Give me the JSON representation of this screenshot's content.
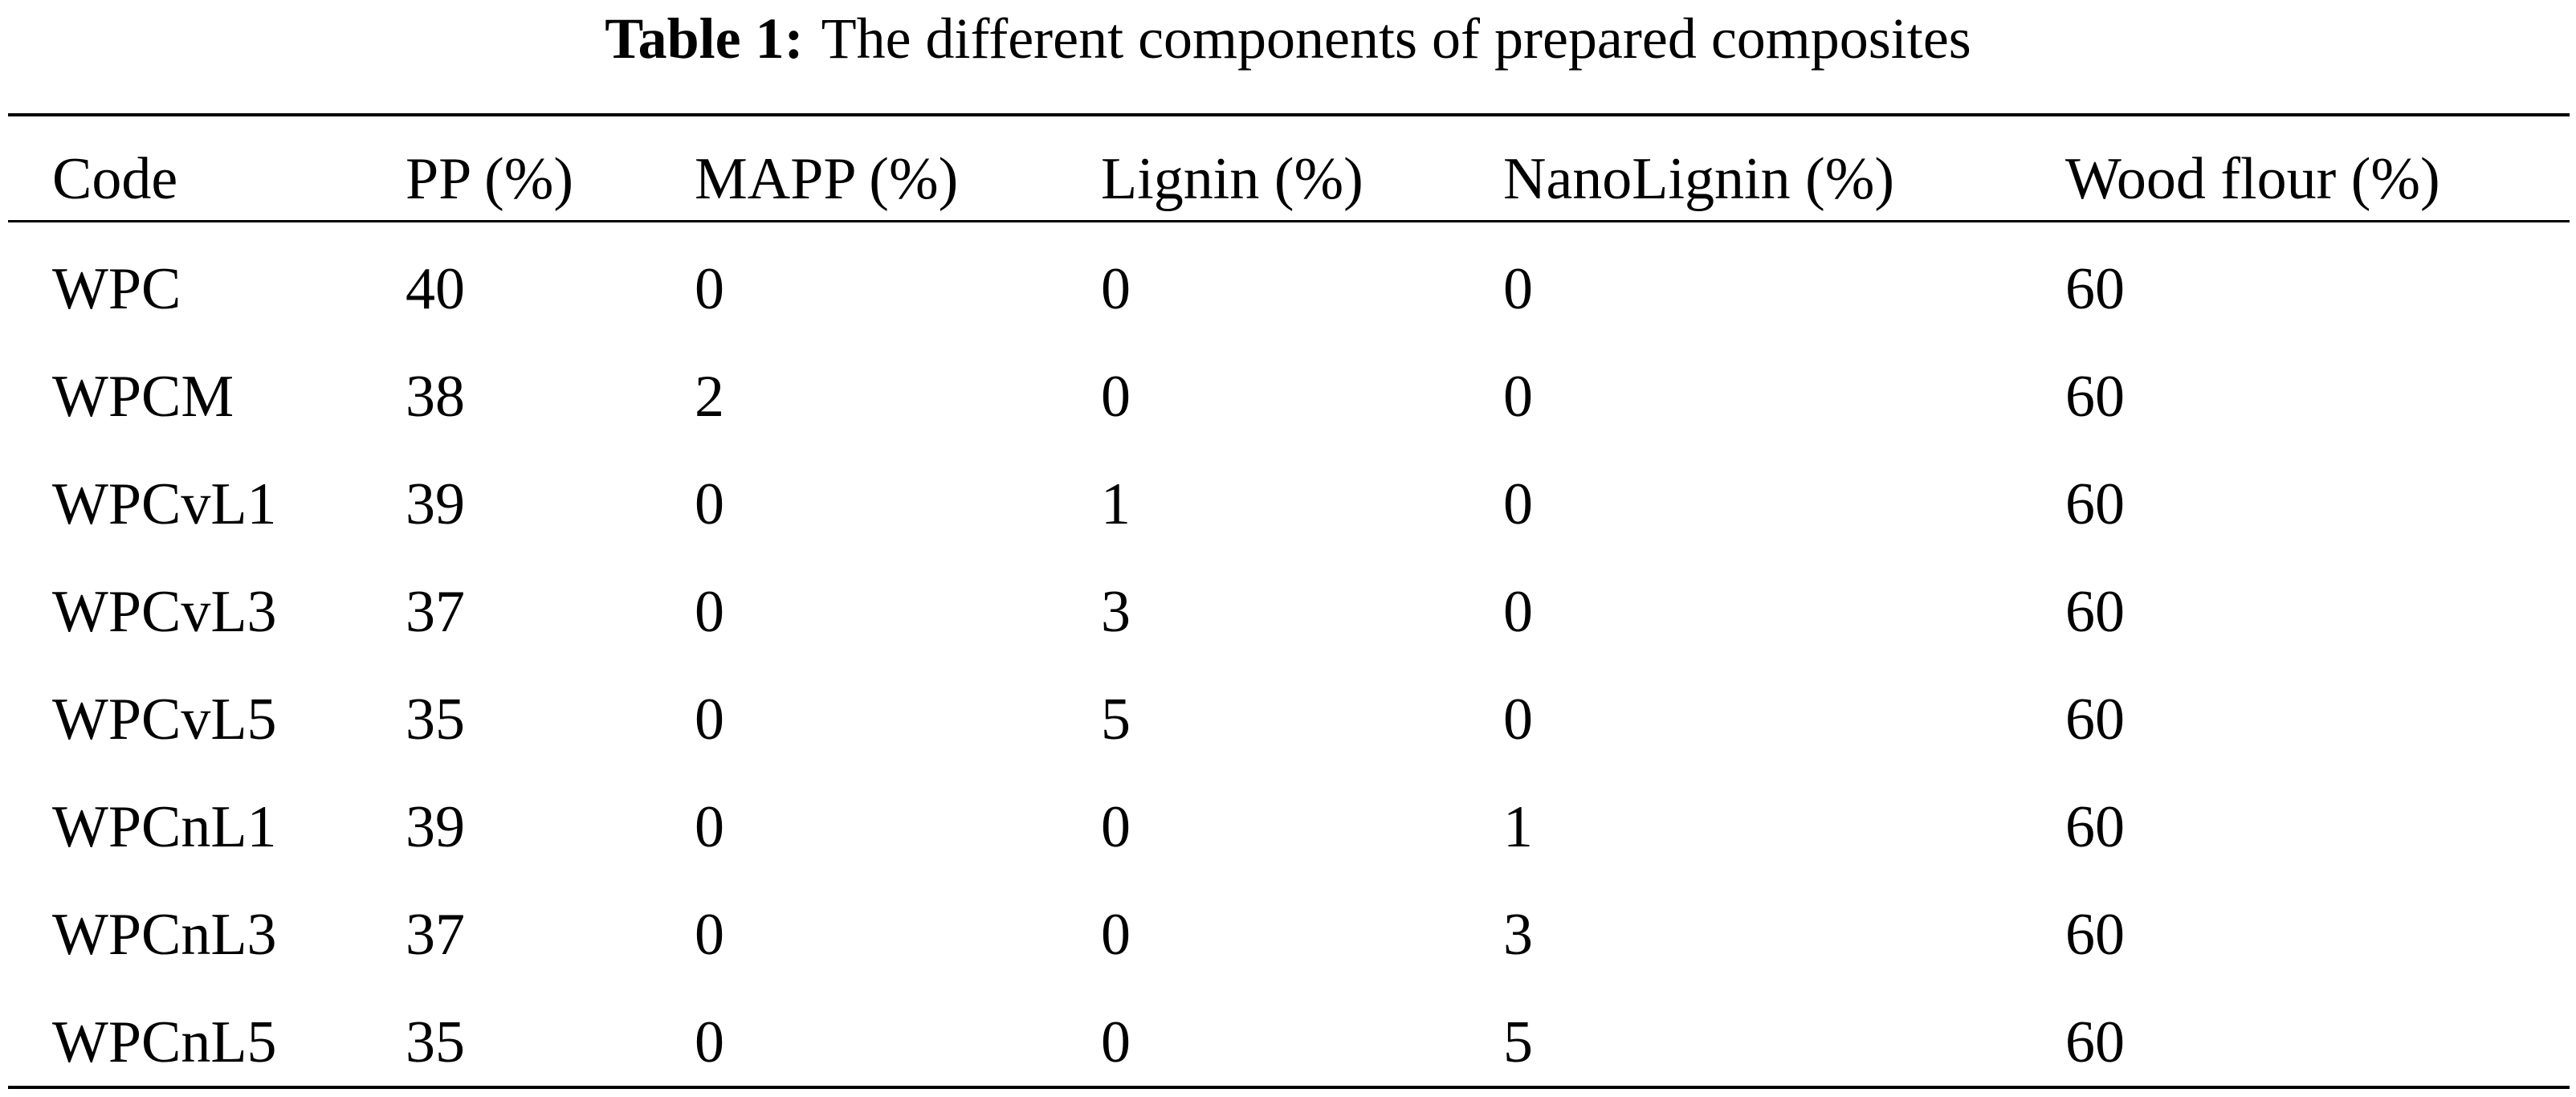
{
  "table": {
    "label": "Table 1:",
    "title": "The different components of prepared composites",
    "header": [
      "Code",
      "PP (%)",
      "MAPP (%)",
      "Lignin (%)",
      "NanoLignin (%)",
      "Wood flour (%)"
    ],
    "rows": [
      [
        "WPC",
        40,
        0,
        0,
        0,
        60
      ],
      [
        "WPCM",
        38,
        2,
        0,
        0,
        60
      ],
      [
        "WPCvL1",
        39,
        0,
        1,
        0,
        60
      ],
      [
        "WPCvL3",
        37,
        0,
        3,
        0,
        60
      ],
      [
        "WPCvL5",
        35,
        0,
        5,
        0,
        60
      ],
      [
        "WPCnL1",
        39,
        0,
        0,
        1,
        60
      ],
      [
        "WPCnL3",
        37,
        0,
        0,
        3,
        60
      ],
      [
        "WPCnL5",
        35,
        0,
        0,
        5,
        60
      ]
    ]
  }
}
